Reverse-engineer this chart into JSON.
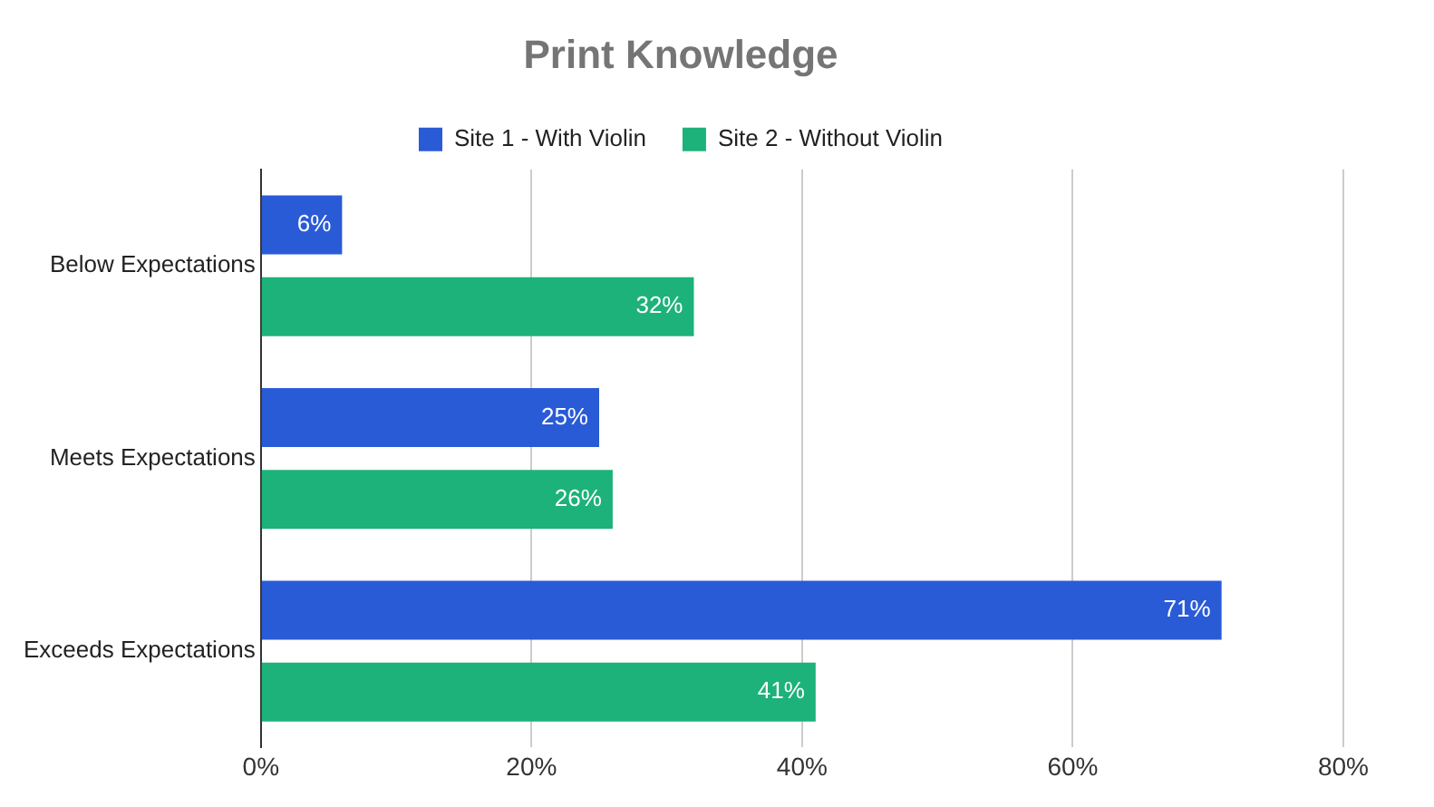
{
  "chart_data": {
    "type": "bar",
    "orientation": "horizontal",
    "title": "Print Knowledge",
    "categories": [
      "Below Expectations",
      "Meets Expectations",
      "Exceeds Expectations"
    ],
    "series": [
      {
        "name": "Site 1 - With Violin",
        "color": "#2a5bd7",
        "values": [
          6,
          25,
          71
        ],
        "value_labels": [
          "6%",
          "25%",
          "71%"
        ]
      },
      {
        "name": "Site 2 - Without Violin",
        "color": "#1db27a",
        "values": [
          32,
          26,
          41
        ],
        "value_labels": [
          "32%",
          "26%",
          "41%"
        ]
      }
    ],
    "xlim": [
      0,
      80
    ],
    "xticks": [
      {
        "value": 0,
        "label": "0%"
      },
      {
        "value": 20,
        "label": "20%"
      },
      {
        "value": 40,
        "label": "40%"
      },
      {
        "value": 60,
        "label": "60%"
      },
      {
        "value": 80,
        "label": "80%"
      }
    ],
    "grid": "x",
    "legend": "top"
  }
}
